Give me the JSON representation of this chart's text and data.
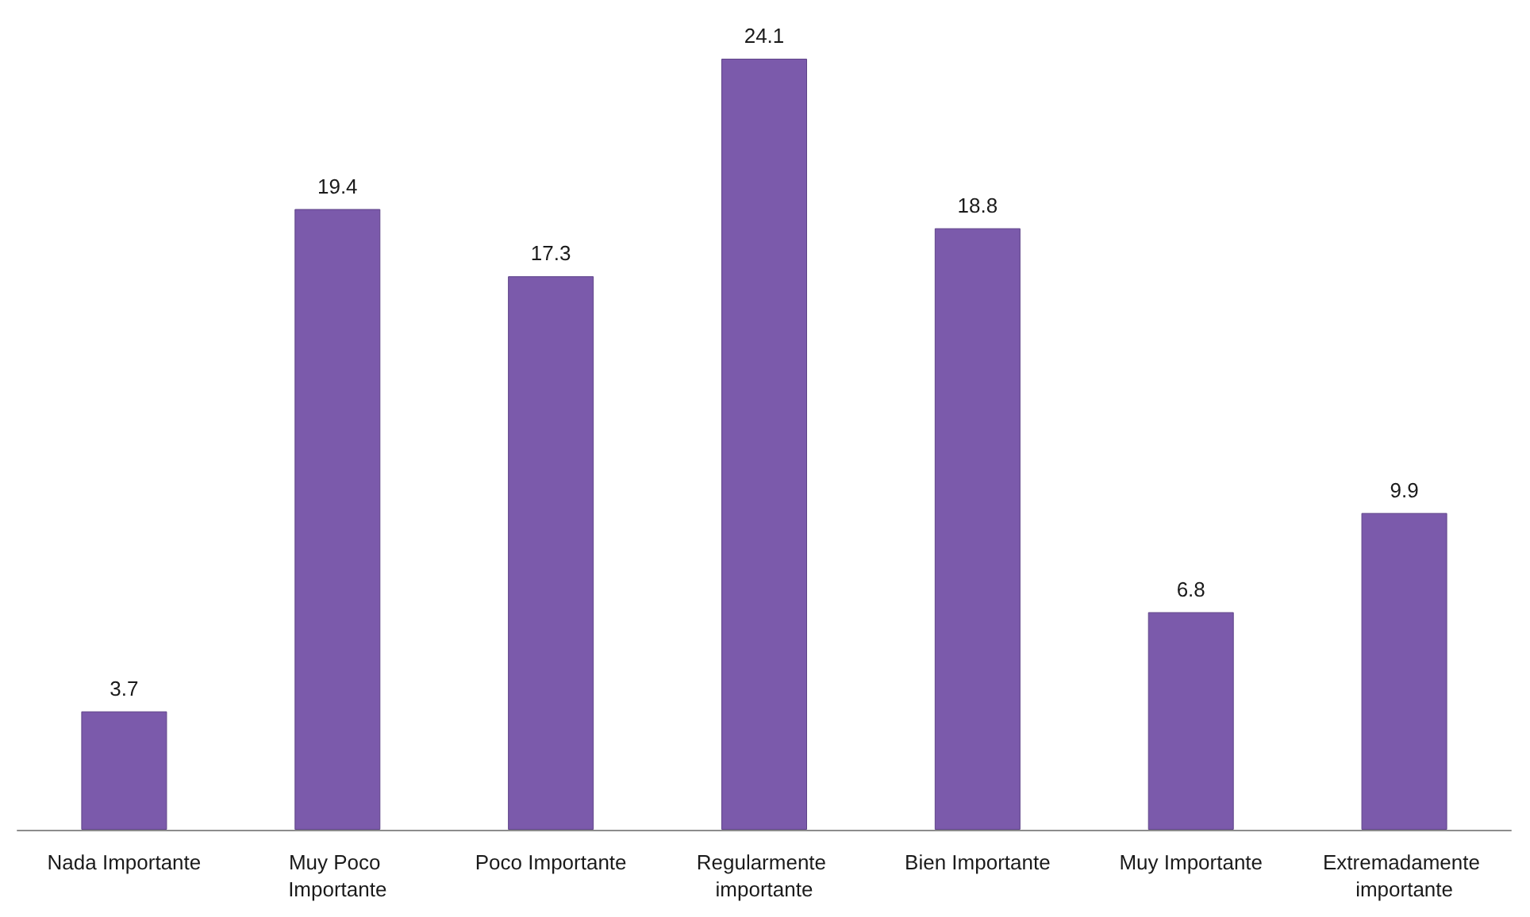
{
  "chart_data": {
    "type": "bar",
    "categories": [
      "Nada Importante",
      "Muy Poco Importante",
      "Poco Importante",
      "Regularmente importante",
      "Bien Importante",
      "Muy Importante",
      "Extremadamente importante"
    ],
    "values": [
      3.7,
      19.4,
      17.3,
      24.1,
      18.8,
      6.8,
      9.9
    ],
    "color": "#7b5aab",
    "data_labels": true
  }
}
